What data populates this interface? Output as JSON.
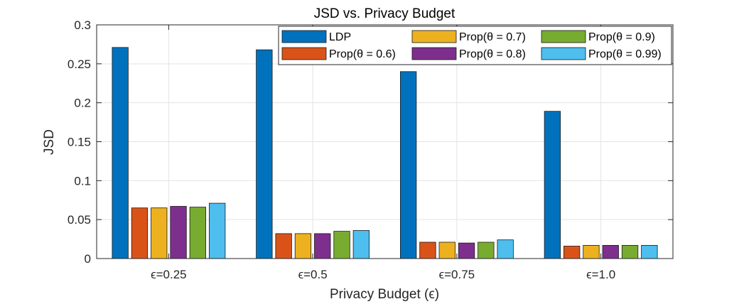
{
  "chart_data": {
    "type": "bar",
    "title": "JSD vs. Privacy Budget",
    "xlabel": "Privacy Budget (ϵ)",
    "ylabel": "JSD",
    "categories": [
      "ϵ=0.25",
      "ϵ=0.5",
      "ϵ=0.75",
      "ϵ=1.0"
    ],
    "ylim": [
      0,
      0.3
    ],
    "yticks": [
      0,
      0.05,
      0.1,
      0.15,
      0.2,
      0.25,
      0.3
    ],
    "ytick_labels": [
      "0",
      "0.05",
      "0.1",
      "0.15",
      "0.2",
      "0.25",
      "0.3"
    ],
    "grid": true,
    "legend_position": "top-right",
    "series": [
      {
        "name": "LDP",
        "color": "#0072BD",
        "values": [
          0.271,
          0.268,
          0.24,
          0.189
        ]
      },
      {
        "name": "Prop(θ = 0.6)",
        "color": "#D95319",
        "values": [
          0.065,
          0.032,
          0.021,
          0.016
        ]
      },
      {
        "name": "Prop(θ = 0.7)",
        "color": "#EDB120",
        "values": [
          0.065,
          0.032,
          0.021,
          0.017
        ]
      },
      {
        "name": "Prop(θ = 0.8)",
        "color": "#7E2F8E",
        "values": [
          0.067,
          0.032,
          0.02,
          0.017
        ]
      },
      {
        "name": "Prop(θ = 0.9)",
        "color": "#77AC30",
        "values": [
          0.066,
          0.035,
          0.021,
          0.017
        ]
      },
      {
        "name": "Prop(θ = 0.99)",
        "color": "#4DBEEE",
        "values": [
          0.071,
          0.036,
          0.024,
          0.017
        ]
      }
    ]
  }
}
